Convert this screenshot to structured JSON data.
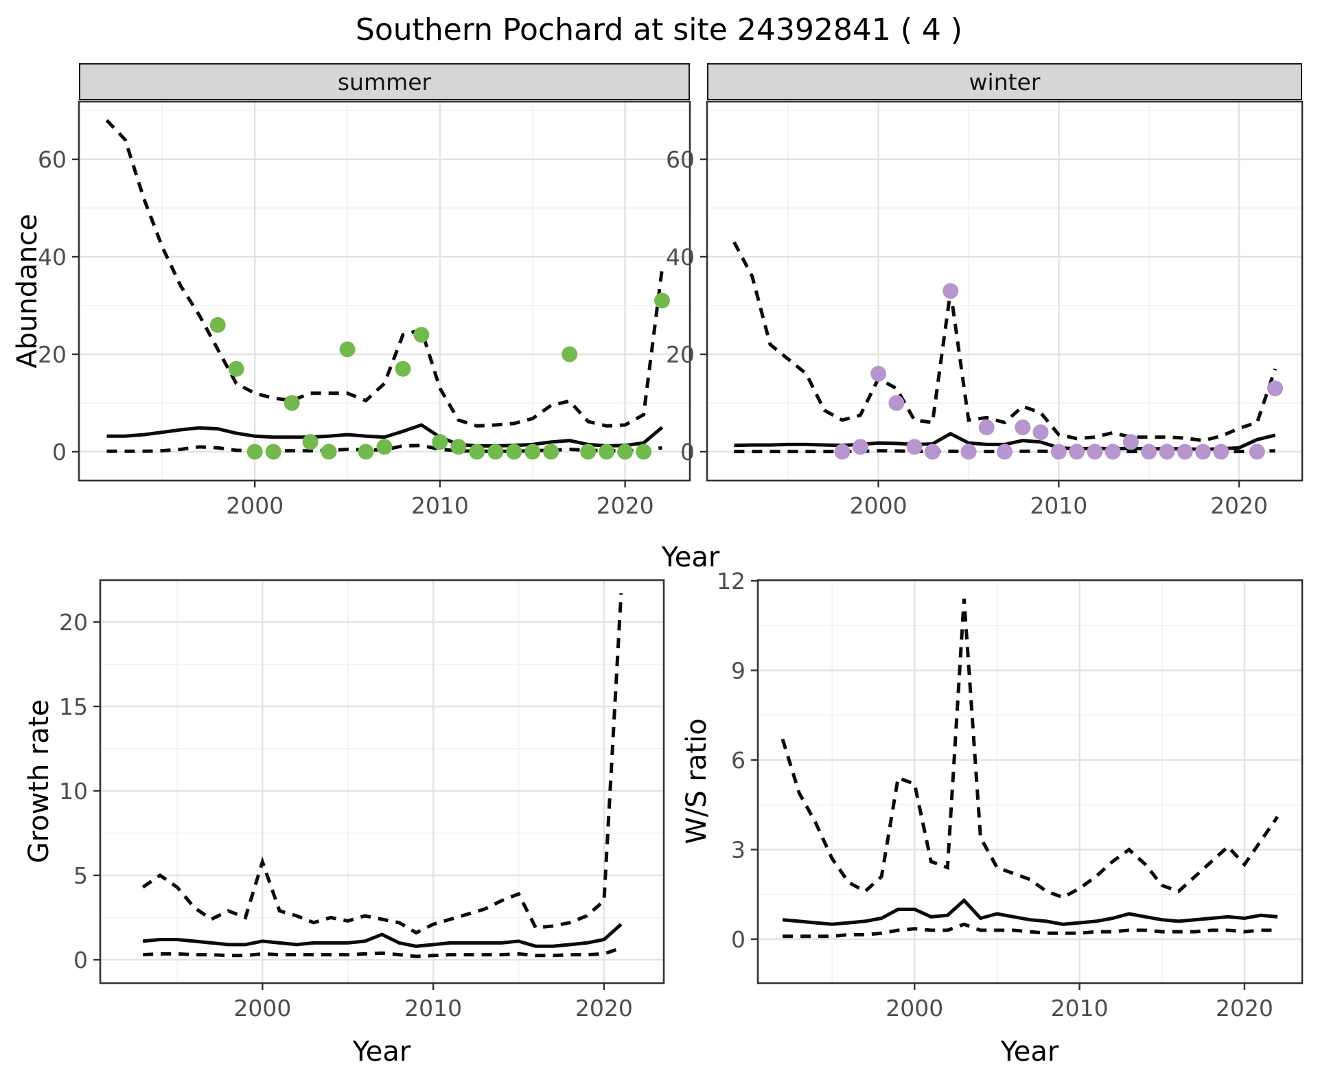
{
  "title": "Southern Pochard at site 24392841 ( 4 )",
  "colors": {
    "line": "#0b0b0b",
    "summer_point": "#72b94e",
    "winter_point": "#b795ce",
    "strip_bg": "#d6d6d6",
    "strip_border": "#171717",
    "panel_border": "#333333",
    "grid_major": "#e3e3e3",
    "grid_minor": "#f1f1f1",
    "tick": "#333333",
    "tick_label": "#4d4d4d",
    "background": "#ffffff"
  },
  "chart_data": [
    {
      "id": "abundance_summer",
      "type": "line",
      "facet": "summer",
      "xlabel": "Year",
      "ylabel": "Abundance",
      "xlim": [
        1990.5,
        2023.5
      ],
      "xticks": [
        2000,
        2010,
        2020
      ],
      "xticks_minor": [
        1995,
        2005,
        2015
      ],
      "yticks": [
        0,
        20,
        40,
        60
      ],
      "yticks_minor": [
        10,
        30,
        50,
        70
      ],
      "x": [
        1992,
        1993,
        1994,
        1995,
        1996,
        1997,
        1998,
        1999,
        2000,
        2001,
        2002,
        2003,
        2004,
        2005,
        2006,
        2007,
        2008,
        2009,
        2010,
        2011,
        2012,
        2013,
        2014,
        2015,
        2016,
        2017,
        2018,
        2019,
        2020,
        2021,
        2022
      ],
      "series": [
        {
          "name": "upper_ci",
          "style": "dashed",
          "values": [
            68,
            64,
            52,
            42,
            34,
            28,
            21,
            14,
            12,
            11,
            10.5,
            12,
            12,
            12,
            10.5,
            14,
            24,
            25,
            13,
            6.5,
            5.3,
            5.5,
            5.8,
            6.8,
            9.5,
            10.4,
            6.2,
            5.3,
            5.5,
            7.6,
            37.5
          ]
        },
        {
          "name": "median",
          "style": "solid",
          "values": [
            3.2,
            3.2,
            3.5,
            4.0,
            4.5,
            4.9,
            4.7,
            3.8,
            3.2,
            3.0,
            3.0,
            3.0,
            3.2,
            3.5,
            3.2,
            3.0,
            4.2,
            5.5,
            3.0,
            1.5,
            1.2,
            1.2,
            1.3,
            1.5,
            2.0,
            2.3,
            1.5,
            1.2,
            1.3,
            1.8,
            5.0
          ]
        },
        {
          "name": "lower_ci",
          "style": "dashed",
          "values": [
            0.1,
            0.1,
            0.1,
            0.2,
            0.5,
            1.0,
            0.8,
            0.3,
            0.2,
            0.2,
            0.2,
            0.2,
            0.3,
            0.5,
            0.4,
            0.4,
            1.2,
            1.3,
            0.5,
            0.2,
            0.1,
            0.1,
            0.1,
            0.2,
            0.3,
            0.5,
            0.3,
            0.2,
            0.2,
            0.3,
            0.8
          ]
        }
      ],
      "points": {
        "name": "observed_counts",
        "color_key": "summer_point",
        "x": [
          1998,
          1999,
          2000,
          2001,
          2002,
          2003,
          2004,
          2005,
          2006,
          2007,
          2008,
          2009,
          2010,
          2011,
          2012,
          2013,
          2014,
          2015,
          2016,
          2017,
          2018,
          2019,
          2020,
          2021,
          2022
        ],
        "y": [
          26,
          17,
          0,
          0,
          10,
          2,
          0,
          21,
          0,
          1,
          17,
          24,
          2,
          1,
          0,
          0,
          0,
          0,
          0,
          20,
          0,
          0,
          0,
          0,
          31
        ]
      }
    },
    {
      "id": "abundance_winter",
      "type": "line",
      "facet": "winter",
      "xlabel": "Year",
      "ylabel": "Abundance",
      "xlim": [
        1990.5,
        2023.5
      ],
      "xticks": [
        2000,
        2010,
        2020
      ],
      "xticks_minor": [
        1995,
        2005,
        2015
      ],
      "yticks": [
        0,
        20,
        40,
        60
      ],
      "yticks_minor": [
        10,
        30,
        50,
        70
      ],
      "x": [
        1992,
        1993,
        1994,
        1995,
        1996,
        1997,
        1998,
        1999,
        2000,
        2001,
        2002,
        2003,
        2004,
        2005,
        2006,
        2007,
        2008,
        2009,
        2010,
        2011,
        2012,
        2013,
        2014,
        2015,
        2016,
        2017,
        2018,
        2019,
        2020,
        2021,
        2022
      ],
      "series": [
        {
          "name": "upper_ci",
          "style": "dashed",
          "values": [
            43,
            36,
            22,
            19,
            16,
            8.5,
            6.5,
            7.5,
            15,
            13,
            6.5,
            6,
            33,
            6.5,
            7,
            6,
            9.3,
            8,
            3.5,
            2.7,
            3,
            3.9,
            3,
            3,
            3,
            2.8,
            2.3,
            3.2,
            4.8,
            6,
            17
          ]
        },
        {
          "name": "median",
          "style": "solid",
          "values": [
            1.3,
            1.4,
            1.4,
            1.5,
            1.5,
            1.4,
            1.3,
            1.5,
            1.8,
            1.7,
            1.5,
            1.6,
            3.7,
            1.8,
            1.5,
            1.5,
            2.3,
            2.0,
            0.8,
            0.6,
            0.7,
            0.6,
            0.7,
            0.6,
            0.6,
            0.6,
            0.5,
            0.6,
            0.8,
            2.5,
            3.4
          ]
        },
        {
          "name": "lower_ci",
          "style": "dashed",
          "values": [
            0.05,
            0.05,
            0.05,
            0.05,
            0.05,
            0.05,
            0.05,
            0.1,
            0.2,
            0.15,
            0.1,
            0.05,
            0.1,
            0.05,
            0.05,
            0.05,
            0.1,
            0.1,
            0.05,
            0.05,
            0.05,
            0.05,
            0.05,
            0.05,
            0.05,
            0.05,
            0.05,
            0.05,
            0.05,
            0.1,
            0.2
          ]
        }
      ],
      "points": {
        "name": "observed_counts",
        "color_key": "winter_point",
        "x": [
          1998,
          1999,
          2000,
          2001,
          2002,
          2003,
          2004,
          2005,
          2006,
          2007,
          2008,
          2009,
          2010,
          2011,
          2012,
          2013,
          2014,
          2015,
          2016,
          2017,
          2018,
          2019,
          2021,
          2022
        ],
        "y": [
          0,
          1,
          16,
          10,
          1,
          0,
          33,
          0,
          5,
          0,
          5,
          4,
          0,
          0,
          0,
          0,
          2,
          0,
          0,
          0,
          0,
          0,
          0,
          13
        ]
      }
    },
    {
      "id": "growth_rate",
      "type": "line",
      "facet": null,
      "xlabel": "Year",
      "ylabel": "Growth rate",
      "xlim": [
        1990.5,
        2023.5
      ],
      "xticks": [
        2000,
        2010,
        2020
      ],
      "xticks_minor": [
        1995,
        2005,
        2015
      ],
      "yticks": [
        0,
        5,
        10,
        15,
        20
      ],
      "yticks_minor": [
        2.5,
        7.5,
        12.5,
        17.5
      ],
      "x": [
        1993,
        1994,
        1995,
        1996,
        1997,
        1998,
        1999,
        2000,
        2001,
        2002,
        2003,
        2004,
        2005,
        2006,
        2007,
        2008,
        2009,
        2010,
        2011,
        2012,
        2013,
        2014,
        2015,
        2016,
        2017,
        2018,
        2019,
        2020,
        2021
      ],
      "series": [
        {
          "name": "upper_ci",
          "style": "dashed",
          "values": [
            4.3,
            5.0,
            4.3,
            3.1,
            2.4,
            2.9,
            2.5,
            5.8,
            2.9,
            2.6,
            2.2,
            2.5,
            2.3,
            2.6,
            2.4,
            2.2,
            1.6,
            2.1,
            2.4,
            2.7,
            3.0,
            3.5,
            3.9,
            1.9,
            2.0,
            2.2,
            2.6,
            3.5,
            21.7
          ]
        },
        {
          "name": "median",
          "style": "solid",
          "values": [
            1.1,
            1.2,
            1.2,
            1.1,
            1.0,
            0.9,
            0.9,
            1.1,
            1.0,
            0.9,
            1.0,
            1.0,
            1.0,
            1.1,
            1.5,
            1.0,
            0.8,
            0.9,
            1.0,
            1.0,
            1.0,
            1.0,
            1.1,
            0.8,
            0.8,
            0.9,
            1.0,
            1.2,
            2.1
          ]
        },
        {
          "name": "lower_ci",
          "style": "dashed",
          "values": [
            0.3,
            0.35,
            0.35,
            0.3,
            0.3,
            0.25,
            0.25,
            0.35,
            0.3,
            0.3,
            0.3,
            0.3,
            0.3,
            0.35,
            0.4,
            0.3,
            0.2,
            0.25,
            0.3,
            0.3,
            0.3,
            0.3,
            0.35,
            0.25,
            0.25,
            0.3,
            0.3,
            0.35,
            0.7
          ]
        }
      ],
      "points": null
    },
    {
      "id": "ws_ratio",
      "type": "line",
      "facet": null,
      "xlabel": "Year",
      "ylabel": "W/S ratio",
      "xlim": [
        1990.5,
        2023.5
      ],
      "xticks": [
        2000,
        2010,
        2020
      ],
      "xticks_minor": [
        1995,
        2005,
        2015
      ],
      "yticks": [
        0,
        3,
        6,
        9,
        12
      ],
      "yticks_minor": [
        1.5,
        4.5,
        7.5,
        10.5
      ],
      "x": [
        1992,
        1993,
        1994,
        1995,
        1996,
        1997,
        1998,
        1999,
        2000,
        2001,
        2002,
        2003,
        2004,
        2005,
        2006,
        2007,
        2008,
        2009,
        2010,
        2011,
        2012,
        2013,
        2014,
        2015,
        2016,
        2017,
        2018,
        2019,
        2020,
        2021,
        2022
      ],
      "series": [
        {
          "name": "upper_ci",
          "style": "dashed",
          "values": [
            6.7,
            4.9,
            3.9,
            2.7,
            1.9,
            1.6,
            2.1,
            5.4,
            5.2,
            2.6,
            2.4,
            11.4,
            3.4,
            2.4,
            2.2,
            2.0,
            1.6,
            1.4,
            1.7,
            2.1,
            2.6,
            3.0,
            2.5,
            1.8,
            1.6,
            2.1,
            2.6,
            3.1,
            2.5,
            3.3,
            4.1
          ]
        },
        {
          "name": "median",
          "style": "solid",
          "values": [
            0.65,
            0.6,
            0.55,
            0.5,
            0.55,
            0.6,
            0.7,
            1.0,
            1.0,
            0.75,
            0.8,
            1.3,
            0.7,
            0.85,
            0.75,
            0.65,
            0.6,
            0.5,
            0.55,
            0.6,
            0.7,
            0.85,
            0.75,
            0.65,
            0.6,
            0.65,
            0.7,
            0.75,
            0.7,
            0.8,
            0.75
          ]
        },
        {
          "name": "lower_ci",
          "style": "dashed",
          "values": [
            0.1,
            0.1,
            0.1,
            0.1,
            0.15,
            0.15,
            0.2,
            0.3,
            0.35,
            0.3,
            0.3,
            0.5,
            0.3,
            0.3,
            0.3,
            0.25,
            0.2,
            0.2,
            0.2,
            0.25,
            0.25,
            0.3,
            0.3,
            0.25,
            0.25,
            0.25,
            0.3,
            0.3,
            0.25,
            0.3,
            0.3
          ]
        }
      ],
      "points": null
    }
  ]
}
